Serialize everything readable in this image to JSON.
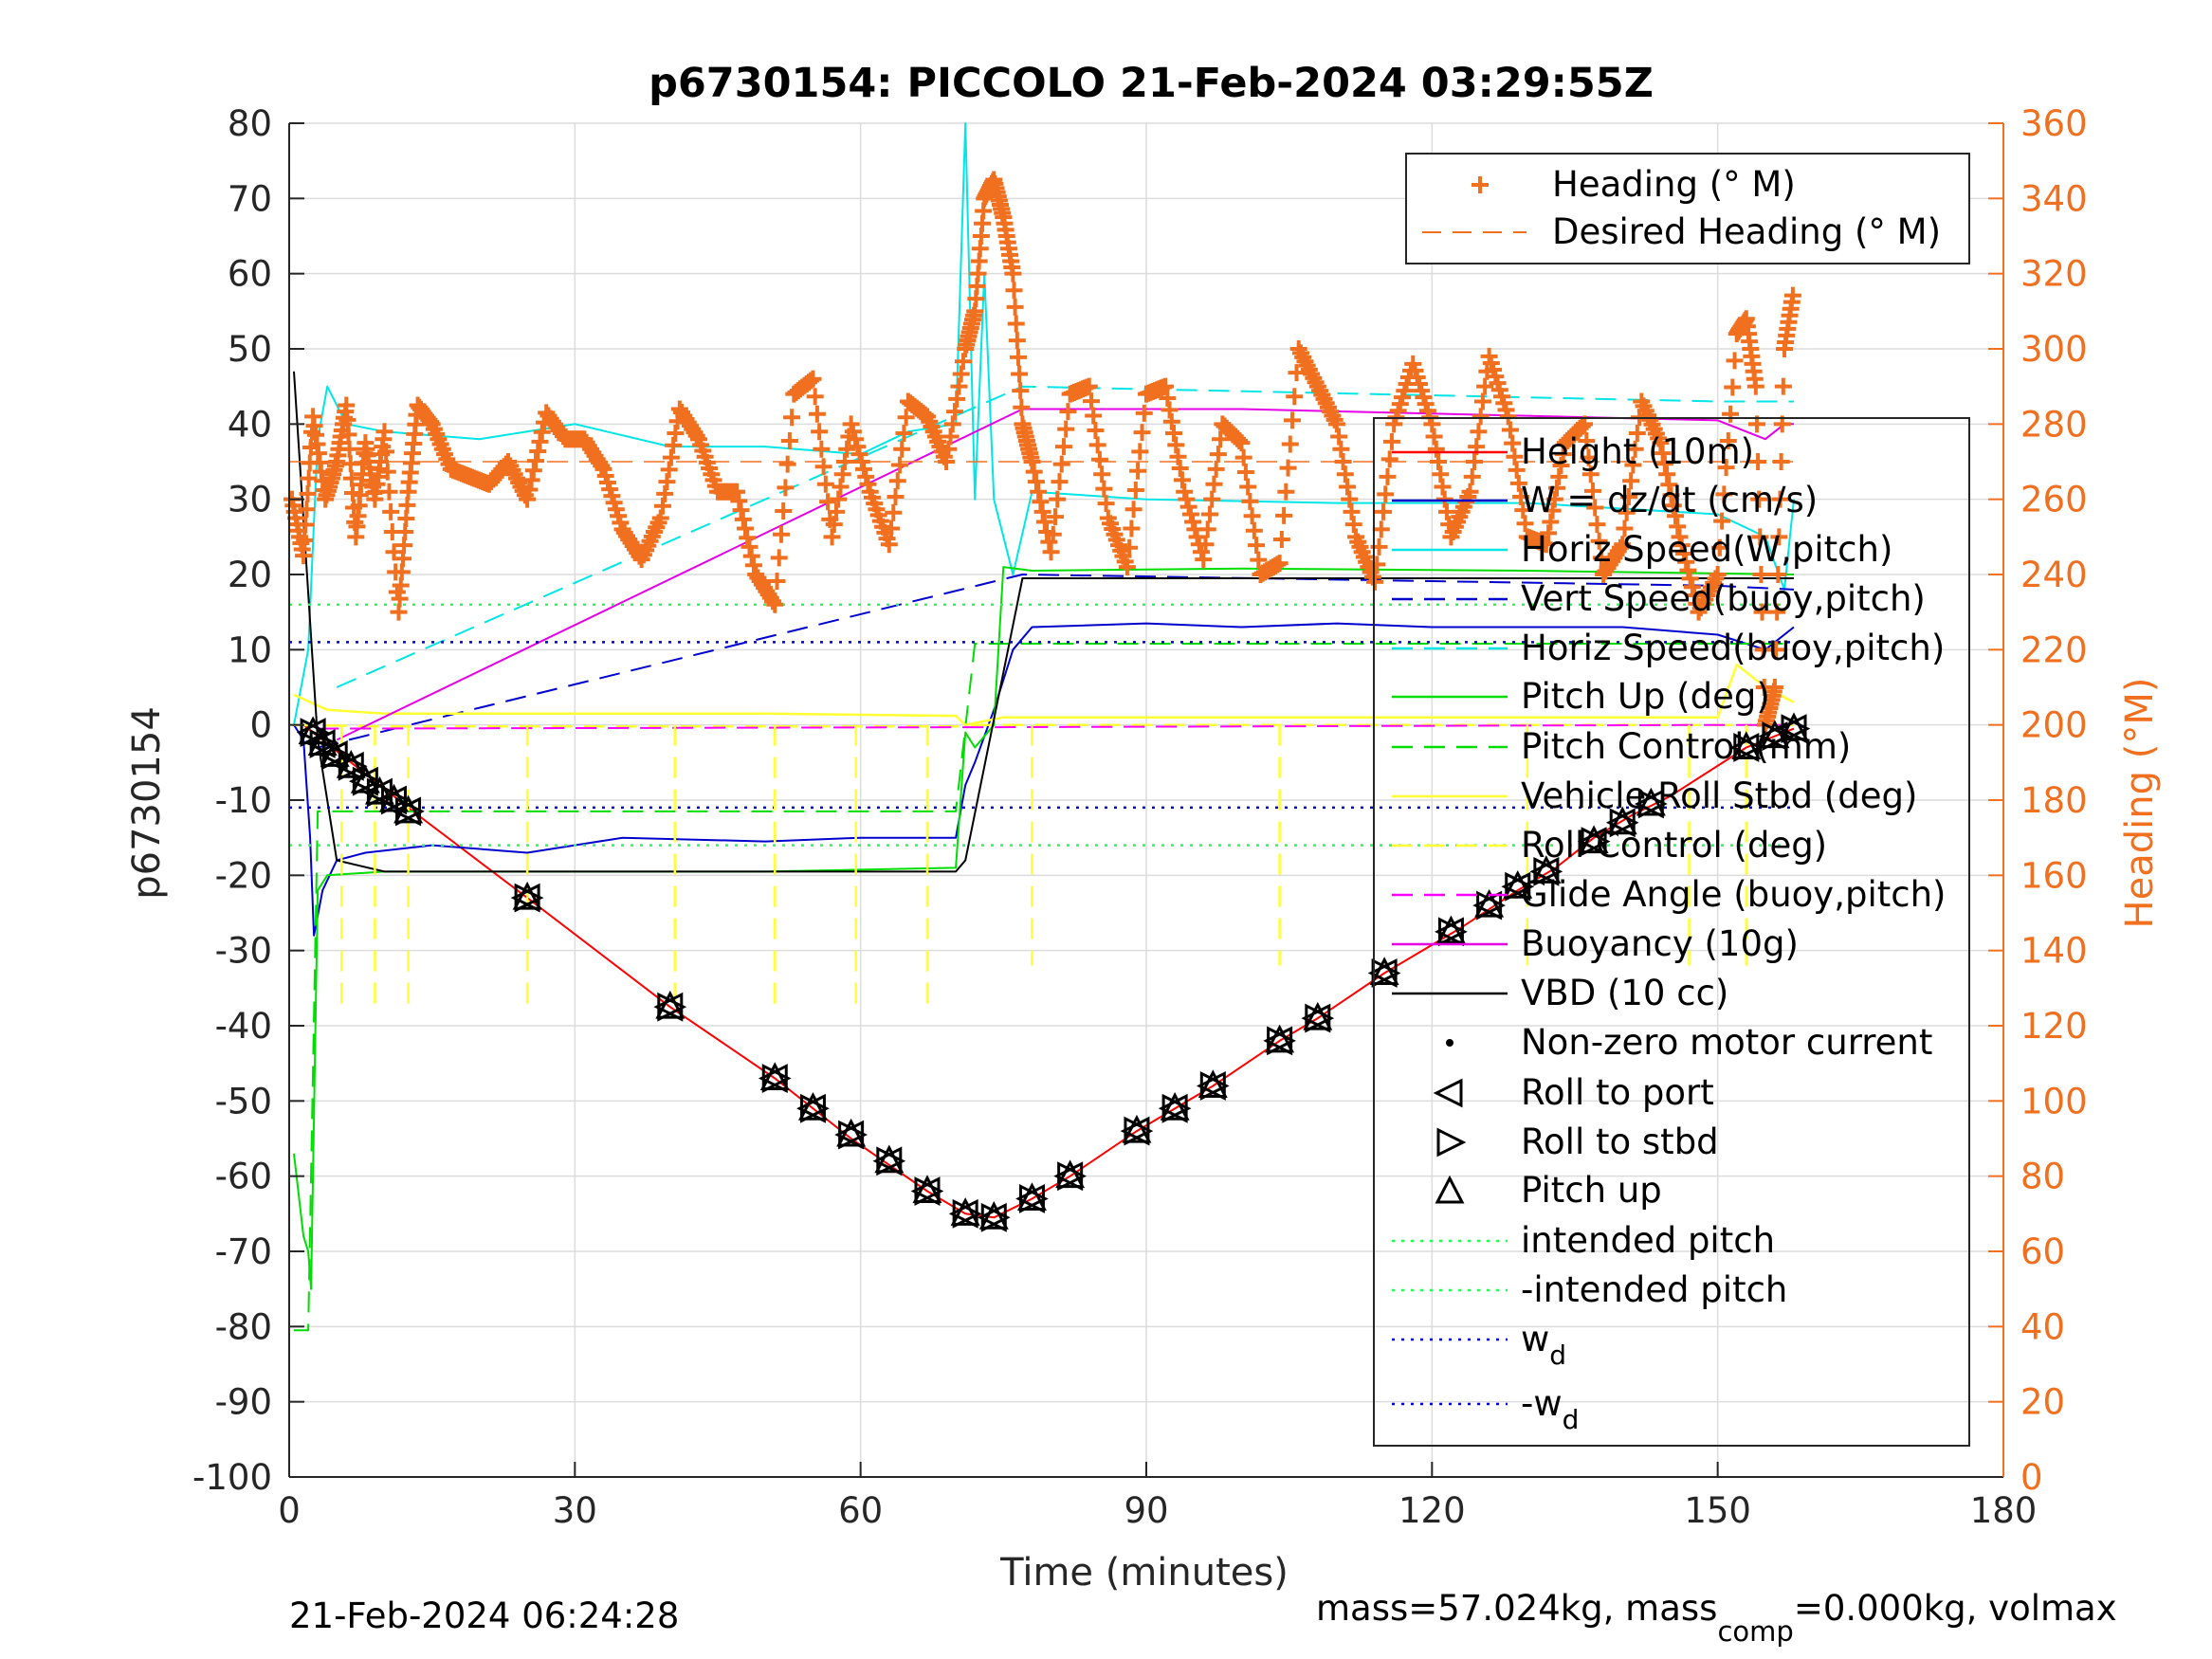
{
  "chart_data": {
    "type": "line",
    "title": "p6730154: PICCOLO 21-Feb-2024 03:29:55Z",
    "xlabel": "Time (minutes)",
    "ylabel": "p6730154",
    "ylabel_right": "Heading (°M)",
    "xlim": [
      0,
      180
    ],
    "ylim": [
      -100,
      80
    ],
    "ylim_right": [
      0,
      360
    ],
    "xticks": [
      "0",
      "30",
      "60",
      "90",
      "120",
      "150",
      "180"
    ],
    "yticks": [
      "-100",
      "-90",
      "-80",
      "-70",
      "-60",
      "-50",
      "-40",
      "-30",
      "-20",
      "-10",
      "0",
      "10",
      "20",
      "30",
      "40",
      "50",
      "60",
      "70",
      "80"
    ],
    "yticks_right": [
      "0",
      "20",
      "40",
      "60",
      "80",
      "100",
      "120",
      "140",
      "160",
      "180",
      "200",
      "220",
      "240",
      "260",
      "280",
      "300",
      "320",
      "340",
      "360"
    ],
    "grid": true,
    "legend_right_axis": {
      "placement": "top-right",
      "entries": [
        "Heading (° M)",
        "Desired Heading (° M)"
      ]
    },
    "legend_left_axis": {
      "placement": "right",
      "entries": [
        "Height (10m)",
        "W = dz/dt (cm/s)",
        "Horiz Speed(W,pitch)",
        "Vert Speed(buoy,pitch)",
        "Horiz Speed(buoy,pitch)",
        "Pitch Up (deg)",
        "Pitch Control (mm)",
        "Vehicle Roll Stbd (deg)",
        "Roll Control (deg)",
        "Glide Angle (buoy,pitch)",
        "Buoyancy (10g)",
        "VBD (10 cc)",
        "Non-zero motor current",
        "Roll to port",
        "Roll to stbd",
        "Pitch up",
        "intended pitch",
        "-intended pitch"
      ],
      "entry_wd": "w",
      "entry_wd_sub": "d",
      "entry_neg_wd": "-w",
      "entry_neg_wd_sub": "d"
    },
    "colors": {
      "height": "#ff0000",
      "w": "#0000cd",
      "horiz_w": "#00e5e5",
      "vert_buoy": "#0000cd",
      "horiz_buoy": "#00e5e5",
      "pitch": "#00dd00",
      "pitch_control": "#00dd00",
      "roll": "#ffff33",
      "roll_control": "#ffff33",
      "glide": "#ff00ff",
      "buoyancy": "#e600e6",
      "vbd": "#000000",
      "heading": "#f07020",
      "desired_heading": "#f07020"
    },
    "series": [
      {
        "name": "Height (10m)",
        "x": [
          1.5,
          13,
          25,
          40,
          51,
          59,
          63,
          67,
          71,
          74,
          78,
          82,
          89,
          97,
          104,
          108,
          115,
          123,
          129,
          133,
          137,
          141,
          145,
          153,
          158
        ],
        "y": [
          0,
          -11.5,
          -23,
          -37.5,
          -47,
          -55,
          -58.5,
          -62,
          -65,
          -65.5,
          -63,
          -60,
          -54,
          -48,
          -42,
          -39,
          -33,
          -27,
          -22,
          -19,
          -15,
          -12,
          -9.5,
          -3,
          -0.5
        ]
      },
      {
        "name": "W = dz/dt (cm/s)",
        "x": [
          0.5,
          1.5,
          2.2,
          2.6,
          3.5,
          5,
          8,
          15,
          25,
          35,
          50,
          60,
          70,
          71,
          72,
          74,
          76,
          78,
          90,
          100,
          110,
          120,
          140,
          150,
          155,
          158
        ],
        "y": [
          0,
          -2,
          -15,
          -28,
          -22,
          -18,
          -17,
          -16,
          -17,
          -15,
          -15.5,
          -15,
          -15,
          -8,
          -5,
          2,
          10,
          13,
          13.5,
          13,
          13.5,
          13,
          13,
          12,
          10,
          13
        ]
      },
      {
        "name": "Horiz Speed(W,pitch)",
        "x": [
          0.5,
          2,
          3,
          4,
          6,
          10,
          20,
          30,
          40,
          50,
          60,
          65,
          70,
          71,
          72,
          73,
          74,
          76,
          78,
          90,
          110,
          130,
          150,
          155,
          157,
          158
        ],
        "y": [
          0,
          10,
          38,
          45,
          40,
          39,
          38,
          40,
          37,
          37,
          36,
          39,
          40,
          80,
          30,
          60,
          30,
          20,
          31,
          30,
          29.5,
          29.5,
          28,
          25,
          18,
          30
        ]
      },
      {
        "name": "Vert Speed(buoy,pitch)",
        "x": [
          3,
          77,
          150,
          158
        ],
        "y": [
          -3,
          20,
          18.5,
          18
        ]
      },
      {
        "name": "Horiz Speed(buoy,pitch)",
        "x": [
          5,
          77,
          150,
          158
        ],
        "y": [
          5,
          45,
          43,
          43
        ]
      },
      {
        "name": "Pitch Up (deg)",
        "x": [
          0.5,
          1.5,
          2,
          2.3,
          3,
          4,
          10,
          30,
          50,
          70,
          71,
          72,
          74,
          75,
          78,
          100,
          130,
          158
        ],
        "y": [
          -57,
          -68,
          -70,
          -75,
          -22,
          -20,
          -19.5,
          -19.5,
          -19.5,
          -19,
          -1,
          -3,
          0,
          21,
          20.5,
          20.8,
          20.5,
          20
        ]
      },
      {
        "name": "Pitch Control (mm)",
        "x": [
          0.5,
          2,
          3,
          10,
          70,
          72,
          77,
          158
        ],
        "y": [
          -80.5,
          -80.5,
          -11.5,
          -11.5,
          -11.5,
          10.8,
          10.8,
          10.8
        ]
      },
      {
        "name": "Vehicle Roll Stbd (deg)",
        "x": [
          0.5,
          4,
          10,
          30,
          50,
          70,
          71,
          75,
          100,
          130,
          150,
          152,
          155,
          158
        ],
        "y": [
          4,
          2,
          1.5,
          1.5,
          1.5,
          1.2,
          0,
          1,
          1,
          1,
          1,
          8,
          5,
          3
        ]
      },
      {
        "name": "Roll Control (deg)",
        "x": [
          0.5,
          10,
          30,
          50,
          70,
          72,
          100,
          130,
          150,
          158
        ],
        "y": [
          0,
          -0.2,
          -0.2,
          -0.2,
          -0.2,
          0,
          0,
          0,
          0,
          0
        ]
      },
      {
        "name": "Glide Angle (buoy,pitch)",
        "x": [
          3,
          77,
          150,
          158
        ],
        "y": [
          -0.5,
          -0.3,
          0,
          0
        ]
      },
      {
        "name": "Buoyancy (10g)",
        "x": [
          5,
          77,
          100,
          150,
          155,
          157,
          158
        ],
        "y": [
          -2,
          42,
          42,
          40.5,
          38,
          40,
          40
        ]
      },
      {
        "name": "VBD (10 cc)",
        "x": [
          0.5,
          3,
          5,
          10,
          70,
          71,
          77,
          150,
          157,
          158
        ],
        "y": [
          47,
          -2,
          -18,
          -19.5,
          -19.5,
          -18,
          19.5,
          19.5,
          19.5,
          19.5
        ]
      },
      {
        "name": "intended pitch",
        "x": [
          0,
          158
        ],
        "y": [
          16,
          16
        ]
      },
      {
        "name": "-intended pitch",
        "x": [
          0,
          158
        ],
        "y": [
          -16,
          -16
        ]
      },
      {
        "name": "w_d",
        "x": [
          0,
          158
        ],
        "y": [
          11,
          11
        ]
      },
      {
        "name": "-w_d",
        "x": [
          0,
          158
        ],
        "y": [
          -11,
          -11
        ]
      },
      {
        "name": "Desired Heading (° M)",
        "axis": "right",
        "x": [
          0,
          158
        ],
        "y": [
          270,
          270
        ]
      },
      {
        "name": "Heading (° M)",
        "axis": "right",
        "x": [
          0.3,
          1.5,
          2.5,
          3.8,
          5,
          6,
          7,
          8,
          9,
          10,
          11.5,
          12.5,
          13.5,
          15,
          17,
          19,
          21,
          23,
          25,
          27,
          29,
          31,
          33,
          35,
          37,
          39,
          41,
          43,
          45,
          47,
          49,
          51,
          53,
          55,
          57,
          59,
          61,
          63,
          65,
          67,
          69,
          71,
          72,
          73,
          74,
          75,
          76,
          77,
          78,
          80,
          82,
          84,
          86,
          88,
          90,
          92,
          94,
          96,
          98,
          100,
          102,
          104,
          106,
          108,
          110,
          112,
          114,
          116,
          118,
          120,
          122,
          124,
          126,
          128,
          130,
          132,
          134,
          136,
          138,
          140,
          142,
          144,
          146,
          148,
          150,
          152,
          153,
          154,
          155,
          156,
          157,
          158
        ],
        "y": [
          260,
          245,
          282,
          260,
          270,
          285,
          250,
          275,
          260,
          278,
          230,
          262,
          285,
          280,
          268,
          266,
          264,
          270,
          260,
          283,
          276,
          276,
          268,
          252,
          244,
          255,
          284,
          276,
          262,
          262,
          240,
          232,
          288,
          292,
          250,
          280,
          262,
          248,
          286,
          282,
          270,
          300,
          310,
          340,
          345,
          335,
          320,
          280,
          270,
          246,
          288,
          290,
          255,
          242,
          288,
          290,
          262,
          244,
          280,
          275,
          240,
          243,
          300,
          290,
          280,
          250,
          238,
          280,
          296,
          280,
          250,
          262,
          298,
          282,
          250,
          248,
          275,
          280,
          240,
          248,
          286,
          275,
          250,
          230,
          240,
          304,
          308,
          290,
          200,
          210,
          300,
          316
        ]
      }
    ],
    "markers": {
      "roll_to_port": {
        "x": [
          2.5,
          3.5,
          4.8,
          6.5,
          8,
          9.5,
          11,
          12.5,
          25,
          40,
          51,
          55,
          59,
          63,
          67,
          71,
          74,
          78,
          82,
          89,
          93,
          97,
          104,
          108,
          115,
          122,
          126,
          129,
          132,
          137,
          140,
          143,
          153,
          156,
          158
        ],
        "y": [
          -1,
          -2.5,
          -4,
          -5.5,
          -7.5,
          -9,
          -10,
          -11.5,
          -23,
          -37.5,
          -47,
          -51,
          -54.5,
          -58,
          -62,
          -65,
          -65.5,
          -63,
          -60,
          -54,
          -51,
          -48,
          -42,
          -39,
          -33,
          -27.5,
          -24,
          -21.5,
          -19.5,
          -15.5,
          -13,
          -10.5,
          -3,
          -1.5,
          -0.5
        ]
      }
    },
    "footer_left": "21-Feb-2024 06:24:28",
    "footer_right": {
      "prefix": "mass=57.024kg, mass",
      "sub": "comp",
      "suffix": "=0.000kg, volmax"
    }
  }
}
